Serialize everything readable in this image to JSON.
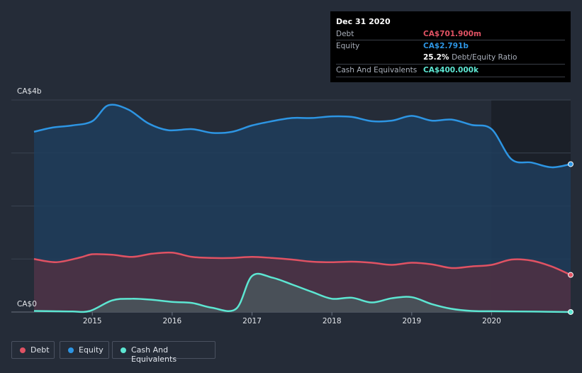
{
  "chart_data": {
    "type": "area",
    "currency_unit": "CA$",
    "y_axis": {
      "min_label": "CA$0",
      "max_label": "CA$4b",
      "ylim": [
        0,
        4.0
      ]
    },
    "x_ticks": [
      "2015",
      "2016",
      "2017",
      "2018",
      "2019",
      "2020"
    ],
    "xlim": [
      2014.27,
      2020.99
    ],
    "series": [
      {
        "name": "Debt",
        "key": "debt",
        "color": "#e05263",
        "points": [
          [
            2014.27,
            1.0
          ],
          [
            2014.55,
            0.94
          ],
          [
            2014.85,
            1.03
          ],
          [
            2015.0,
            1.09
          ],
          [
            2015.25,
            1.08
          ],
          [
            2015.5,
            1.04
          ],
          [
            2015.75,
            1.1
          ],
          [
            2016.0,
            1.12
          ],
          [
            2016.25,
            1.04
          ],
          [
            2016.5,
            1.02
          ],
          [
            2016.75,
            1.02
          ],
          [
            2017.0,
            1.04
          ],
          [
            2017.25,
            1.02
          ],
          [
            2017.5,
            0.99
          ],
          [
            2017.75,
            0.95
          ],
          [
            2018.0,
            0.94
          ],
          [
            2018.25,
            0.95
          ],
          [
            2018.5,
            0.93
          ],
          [
            2018.75,
            0.89
          ],
          [
            2019.0,
            0.93
          ],
          [
            2019.25,
            0.9
          ],
          [
            2019.5,
            0.83
          ],
          [
            2019.75,
            0.86
          ],
          [
            2020.0,
            0.89
          ],
          [
            2020.25,
            0.99
          ],
          [
            2020.5,
            0.97
          ],
          [
            2020.75,
            0.86
          ],
          [
            2020.99,
            0.7
          ]
        ]
      },
      {
        "name": "Equity",
        "key": "equity",
        "color": "#2d95e3",
        "points": [
          [
            2014.27,
            3.4
          ],
          [
            2014.5,
            3.48
          ],
          [
            2014.75,
            3.52
          ],
          [
            2015.0,
            3.6
          ],
          [
            2015.2,
            3.9
          ],
          [
            2015.45,
            3.82
          ],
          [
            2015.7,
            3.56
          ],
          [
            2015.95,
            3.43
          ],
          [
            2016.25,
            3.45
          ],
          [
            2016.5,
            3.38
          ],
          [
            2016.75,
            3.4
          ],
          [
            2017.0,
            3.52
          ],
          [
            2017.25,
            3.6
          ],
          [
            2017.5,
            3.66
          ],
          [
            2017.75,
            3.66
          ],
          [
            2018.0,
            3.69
          ],
          [
            2018.25,
            3.68
          ],
          [
            2018.5,
            3.6
          ],
          [
            2018.75,
            3.61
          ],
          [
            2019.0,
            3.7
          ],
          [
            2019.25,
            3.61
          ],
          [
            2019.5,
            3.63
          ],
          [
            2019.75,
            3.53
          ],
          [
            2020.0,
            3.45
          ],
          [
            2020.25,
            2.88
          ],
          [
            2020.5,
            2.82
          ],
          [
            2020.75,
            2.73
          ],
          [
            2020.99,
            2.79
          ]
        ]
      },
      {
        "name": "Cash And Equivalents",
        "key": "cash",
        "color": "#5de6d2",
        "points": [
          [
            2014.27,
            0.02
          ],
          [
            2014.5,
            0.015
          ],
          [
            2014.75,
            0.01
          ],
          [
            2014.97,
            0.02
          ],
          [
            2015.25,
            0.22
          ],
          [
            2015.5,
            0.25
          ],
          [
            2015.75,
            0.23
          ],
          [
            2016.0,
            0.19
          ],
          [
            2016.25,
            0.17
          ],
          [
            2016.5,
            0.08
          ],
          [
            2016.8,
            0.06
          ],
          [
            2017.0,
            0.68
          ],
          [
            2017.25,
            0.65
          ],
          [
            2017.5,
            0.52
          ],
          [
            2017.75,
            0.38
          ],
          [
            2018.0,
            0.25
          ],
          [
            2018.25,
            0.27
          ],
          [
            2018.5,
            0.18
          ],
          [
            2018.75,
            0.26
          ],
          [
            2019.0,
            0.28
          ],
          [
            2019.25,
            0.15
          ],
          [
            2019.5,
            0.06
          ],
          [
            2019.75,
            0.02
          ],
          [
            2020.0,
            0.015
          ],
          [
            2020.5,
            0.008
          ],
          [
            2020.99,
            0.0004
          ]
        ]
      }
    ]
  },
  "tooltip": {
    "date": "Dec 31 2020",
    "debt_label": "Debt",
    "debt_value": "CA$701.900m",
    "equity_label": "Equity",
    "equity_value": "CA$2.791b",
    "ratio_value": "25.2%",
    "ratio_label": "Debt/Equity Ratio",
    "cash_label": "Cash And Equivalents",
    "cash_value": "CA$400.000k"
  },
  "legend": {
    "debt": "Debt",
    "equity": "Equity",
    "cash": "Cash And Equivalents"
  },
  "colors": {
    "background": "#252c38",
    "plot_shade": "#1b2029",
    "gridline": "#3a4250",
    "debt": "#e05263",
    "equity": "#2d95e3",
    "cash": "#5de6d2"
  }
}
